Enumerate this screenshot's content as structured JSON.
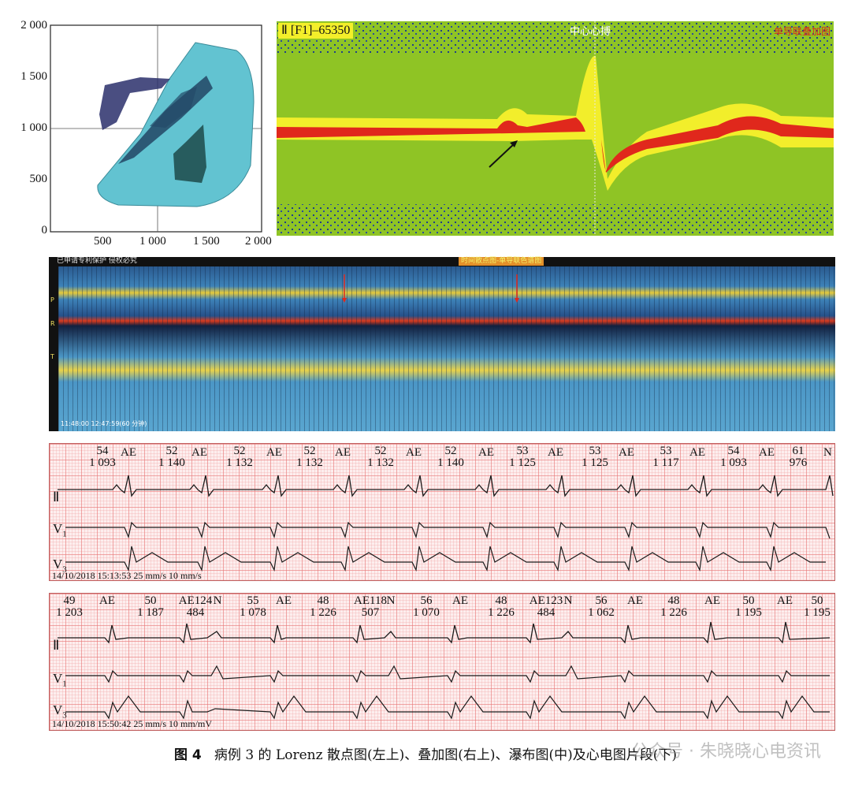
{
  "lorenz": {
    "y_ticks": [
      "2 000",
      "1 500",
      "1 000",
      "500",
      "0"
    ],
    "x_ticks": [
      "500",
      "1 000",
      "1 500",
      "2 000"
    ]
  },
  "overlay": {
    "title": "Ⅱ [F1]–65350",
    "center_label": "中心心搏",
    "right_label": "单导联叠加图"
  },
  "waterfall": {
    "header_left": "已申请专利保护 侵权必究",
    "header_mid": "时间散点图-单导联色谱图",
    "row_labels": [
      "P",
      "R",
      "T"
    ],
    "time_range": "11:48:00 12:47:59(60 分钟)"
  },
  "strip1": {
    "beats": [
      {
        "rate": "54",
        "rr": "1 093"
      },
      {
        "rate": "52",
        "rr": "1 140"
      },
      {
        "rate": "52",
        "rr": "1 132"
      },
      {
        "rate": "52",
        "rr": "1 132"
      },
      {
        "rate": "52",
        "rr": "1 132"
      },
      {
        "rate": "52",
        "rr": "1 140"
      },
      {
        "rate": "53",
        "rr": "1 125"
      },
      {
        "rate": "53",
        "rr": "1 125"
      },
      {
        "rate": "53",
        "rr": "1 117"
      },
      {
        "rate": "54",
        "rr": "1 093"
      },
      {
        "rate": "61",
        "rr": "976"
      }
    ],
    "ae_label": "AE",
    "end_label": "N",
    "leads": {
      "ii": "Ⅱ",
      "v1": "V",
      "v1_sub": "1",
      "v3": "V",
      "v3_sub": "3"
    },
    "stamp": "14/10/2018 15:13:53   25 mm/s     10  mm/s"
  },
  "strip2": {
    "items": [
      {
        "a": "49",
        "b": "1 203"
      },
      {
        "a": "AE",
        "b": ""
      },
      {
        "a": "50",
        "b": "1 187"
      },
      {
        "a": "AE124",
        "b": "484"
      },
      {
        "a": "N",
        "b": ""
      },
      {
        "a": "55",
        "b": "1 078"
      },
      {
        "a": "AE",
        "b": ""
      },
      {
        "a": "48",
        "b": "1 226"
      },
      {
        "a": "AE118",
        "b": "507"
      },
      {
        "a": "N",
        "b": ""
      },
      {
        "a": "56",
        "b": "1 070"
      },
      {
        "a": "AE",
        "b": ""
      },
      {
        "a": "48",
        "b": "1 226"
      },
      {
        "a": "AE123",
        "b": "484"
      },
      {
        "a": "N",
        "b": ""
      },
      {
        "a": "56",
        "b": "1 062"
      },
      {
        "a": "AE",
        "b": ""
      },
      {
        "a": "48",
        "b": "1 226"
      },
      {
        "a": "AE",
        "b": ""
      },
      {
        "a": "50",
        "b": "1 195"
      },
      {
        "a": "AE",
        "b": ""
      },
      {
        "a": "50",
        "b": "1 195"
      }
    ],
    "leads": {
      "ii": "Ⅱ",
      "v1": "V",
      "v1_sub": "1",
      "v3": "V",
      "v3_sub": "3"
    },
    "stamp": "14/10/2018 15:50:42   25 mm/s     10  mm/mV"
  },
  "caption": {
    "fig": "图 4",
    "text": "病例 3 的 Lorenz 散点图(左上)、叠加图(右上)、瀑布图(中)及心电图片段(下)"
  },
  "watermark": "公众号 · 朱晓晓心电资讯"
}
